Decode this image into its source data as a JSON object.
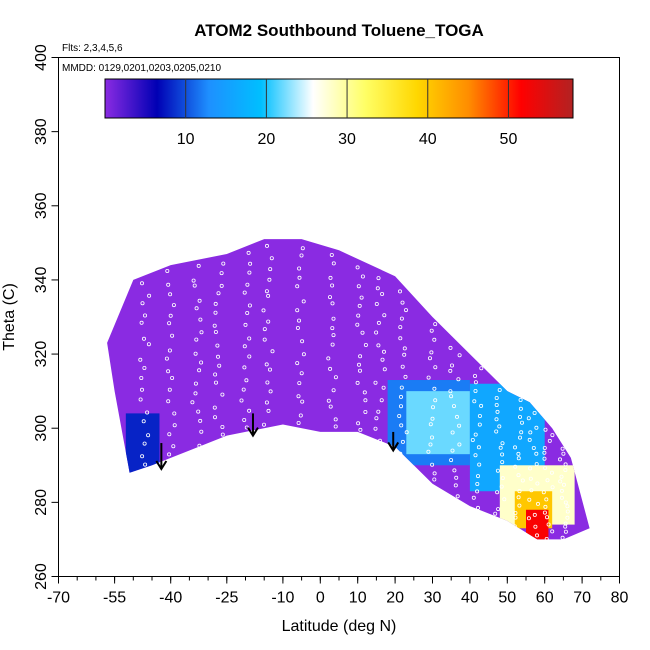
{
  "chart_data": {
    "type": "heatmap",
    "title": "ATOM2 Southbound Toluene_TOGA",
    "subtitle_flights": "Flts: 2,3,4,5,6",
    "subtitle_dates": "MMDD: 0129,0201,0203,0205,0210",
    "xlabel": "Latitude (deg N)",
    "ylabel": "Theta (C)",
    "xlim": [
      -70,
      80
    ],
    "ylim": [
      260,
      400
    ],
    "x_ticks": [
      "-70",
      "-55",
      "-40",
      "-25",
      "-10",
      "0",
      "10",
      "20",
      "30",
      "40",
      "50",
      "60",
      "70",
      "80"
    ],
    "y_ticks": [
      "260",
      "280",
      "300",
      "320",
      "340",
      "360",
      "380",
      "400"
    ],
    "colorbar": {
      "min": 0,
      "max": 58,
      "tick_values": [
        10,
        20,
        30,
        40,
        50
      ],
      "tick_labels": [
        "10",
        "20",
        "30",
        "40",
        "50"
      ],
      "colors": [
        "#8a2be2",
        "#0000b4",
        "#1e90ff",
        "#00bfff",
        "#ffffff",
        "#ffff66",
        "#ffd700",
        "#ff8c00",
        "#ff0000",
        "#b22222"
      ]
    },
    "field_upper_boundary": [
      {
        "lat": -57,
        "theta": 323
      },
      {
        "lat": -50,
        "theta": 340
      },
      {
        "lat": -40,
        "theta": 344
      },
      {
        "lat": -25,
        "theta": 347
      },
      {
        "lat": -15,
        "theta": 351
      },
      {
        "lat": -5,
        "theta": 351
      },
      {
        "lat": 5,
        "theta": 348
      },
      {
        "lat": 20,
        "theta": 341
      },
      {
        "lat": 30,
        "theta": 330
      },
      {
        "lat": 40,
        "theta": 320
      },
      {
        "lat": 50,
        "theta": 310
      },
      {
        "lat": 56,
        "theta": 307
      },
      {
        "lat": 62,
        "theta": 300
      },
      {
        "lat": 67,
        "theta": 292
      },
      {
        "lat": 72,
        "theta": 273
      }
    ],
    "field_lower_boundary": [
      {
        "lat": -57,
        "theta": 323
      },
      {
        "lat": -55,
        "theta": 310
      },
      {
        "lat": -51,
        "theta": 288
      },
      {
        "lat": -45,
        "theta": 290
      },
      {
        "lat": -35,
        "theta": 294
      },
      {
        "lat": -25,
        "theta": 298
      },
      {
        "lat": -20,
        "theta": 299
      },
      {
        "lat": -10,
        "theta": 301
      },
      {
        "lat": 0,
        "theta": 299
      },
      {
        "lat": 10,
        "theta": 299
      },
      {
        "lat": 20,
        "theta": 295
      },
      {
        "lat": 30,
        "theta": 285
      },
      {
        "lat": 40,
        "theta": 279
      },
      {
        "lat": 50,
        "theta": 275
      },
      {
        "lat": 58,
        "theta": 270
      },
      {
        "lat": 65,
        "theta": 270
      },
      {
        "lat": 72,
        "theta": 273
      }
    ],
    "high_value_regions": [
      {
        "lat_min": -52,
        "lat_max": -43,
        "theta_min": 287,
        "theta_max": 304,
        "value": 8
      },
      {
        "lat_min": 18,
        "lat_max": 40,
        "theta_min": 290,
        "theta_max": 313,
        "value": 12
      },
      {
        "lat_min": 23,
        "lat_max": 40,
        "theta_min": 293,
        "theta_max": 310,
        "value": 22
      },
      {
        "lat_min": 40,
        "lat_max": 60,
        "theta_min": 283,
        "theta_max": 312,
        "value": 16
      },
      {
        "lat_min": 48,
        "lat_max": 68,
        "theta_min": 274,
        "theta_max": 290,
        "value": 28
      },
      {
        "lat_min": 52,
        "lat_max": 62,
        "theta_min": 273,
        "theta_max": 283,
        "value": 40
      },
      {
        "lat_min": 55,
        "lat_max": 61,
        "theta_min": 270,
        "theta_max": 278,
        "value": 52
      }
    ],
    "arrows_lat": [
      -42.5,
      -18,
      19.5
    ],
    "arrows_theta_top": [
      296,
      304,
      299
    ],
    "arrows_theta_bottom": [
      289,
      298,
      294
    ]
  }
}
